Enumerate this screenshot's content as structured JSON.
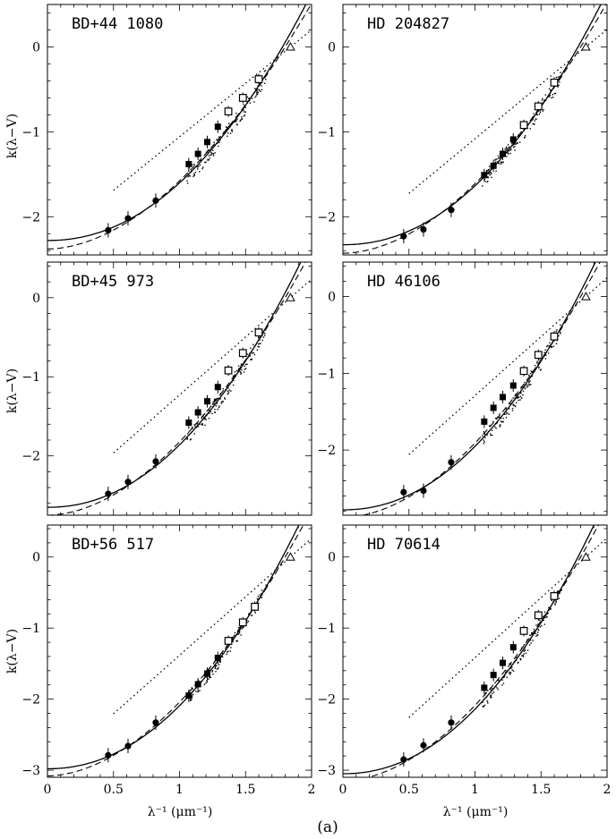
{
  "figure": {
    "caption": "(a)",
    "ylabel": "k(λ−V)",
    "xlabel": "λ⁻¹ (μm⁻¹)"
  },
  "chart_data": [
    {
      "type": "scatter",
      "title": "BD+44 1080",
      "xlim": [
        0,
        2
      ],
      "ylim": [
        -2.45,
        0.5
      ],
      "xticks": [
        0,
        0.5,
        1,
        1.5,
        2
      ],
      "yticks": [
        0,
        -1,
        -2
      ],
      "xtick_labels": [
        "0",
        "0.5",
        "1",
        "1.5",
        "2"
      ],
      "ytick_labels": [
        "0",
        "−1",
        "−2"
      ],
      "a": -2.28,
      "series": [
        {
          "name": "filled circles",
          "marker": "circle-filled",
          "points": [
            [
              0.46,
              -2.16
            ],
            [
              0.61,
              -2.02
            ],
            [
              0.82,
              -1.81
            ]
          ]
        },
        {
          "name": "filled squares",
          "marker": "square-filled",
          "points": [
            [
              1.07,
              -1.38
            ],
            [
              1.14,
              -1.26
            ],
            [
              1.21,
              -1.12
            ],
            [
              1.29,
              -0.94
            ]
          ]
        },
        {
          "name": "open squares",
          "marker": "square-open",
          "points": [
            [
              1.37,
              -0.76
            ],
            [
              1.48,
              -0.6
            ],
            [
              1.6,
              -0.38
            ]
          ]
        },
        {
          "name": "triangle",
          "marker": "triangle-open",
          "points": [
            [
              1.84,
              0.0
            ]
          ]
        }
      ]
    },
    {
      "type": "scatter",
      "title": "HD 204827",
      "xlim": [
        0,
        2
      ],
      "ylim": [
        -2.45,
        0.5
      ],
      "xticks": [
        0,
        0.5,
        1,
        1.5,
        2
      ],
      "yticks": [
        0,
        -1,
        -2
      ],
      "xtick_labels": [
        "0",
        "0.5",
        "1",
        "1.5",
        "2"
      ],
      "ytick_labels": [
        "0",
        "−1",
        "−2"
      ],
      "a": -2.33,
      "series": [
        {
          "name": "filled circles",
          "marker": "circle-filled",
          "points": [
            [
              0.46,
              -2.23
            ],
            [
              0.61,
              -2.15
            ],
            [
              0.82,
              -1.92
            ]
          ]
        },
        {
          "name": "filled squares",
          "marker": "square-filled",
          "points": [
            [
              1.07,
              -1.51
            ],
            [
              1.14,
              -1.4
            ],
            [
              1.21,
              -1.26
            ],
            [
              1.29,
              -1.09
            ]
          ]
        },
        {
          "name": "open squares",
          "marker": "square-open",
          "points": [
            [
              1.37,
              -0.92
            ],
            [
              1.48,
              -0.7
            ],
            [
              1.6,
              -0.42
            ]
          ]
        },
        {
          "name": "triangle",
          "marker": "triangle-open",
          "points": [
            [
              1.84,
              0.0
            ]
          ]
        }
      ]
    },
    {
      "type": "scatter",
      "title": "BD+45 973",
      "xlim": [
        0,
        2
      ],
      "ylim": [
        -2.75,
        0.45
      ],
      "xticks": [
        0,
        0.5,
        1,
        1.5,
        2
      ],
      "yticks": [
        0,
        -1,
        -2
      ],
      "xtick_labels": [
        "0",
        "0.5",
        "1",
        "1.5",
        "2"
      ],
      "ytick_labels": [
        "0",
        "−1",
        "−2"
      ],
      "a": -2.65,
      "series": [
        {
          "name": "filled circles",
          "marker": "circle-filled",
          "points": [
            [
              0.46,
              -2.48
            ],
            [
              0.61,
              -2.33
            ],
            [
              0.82,
              -2.07
            ]
          ]
        },
        {
          "name": "filled squares",
          "marker": "square-filled",
          "points": [
            [
              1.07,
              -1.58
            ],
            [
              1.14,
              -1.45
            ],
            [
              1.21,
              -1.31
            ],
            [
              1.29,
              -1.13
            ]
          ]
        },
        {
          "name": "open squares",
          "marker": "square-open",
          "points": [
            [
              1.37,
              -0.92
            ],
            [
              1.48,
              -0.7
            ],
            [
              1.6,
              -0.44
            ]
          ]
        },
        {
          "name": "triangle",
          "marker": "triangle-open",
          "points": [
            [
              1.84,
              0.0
            ]
          ]
        }
      ]
    },
    {
      "type": "scatter",
      "title": "HD 46106",
      "xlim": [
        0,
        2
      ],
      "ylim": [
        -2.85,
        0.45
      ],
      "xticks": [
        0,
        0.5,
        1,
        1.5,
        2
      ],
      "yticks": [
        0,
        -1,
        -2
      ],
      "xtick_labels": [
        "0",
        "0.5",
        "1",
        "1.5",
        "2"
      ],
      "ytick_labels": [
        "0",
        "−1",
        "−2"
      ],
      "a": -2.78,
      "series": [
        {
          "name": "filled circles",
          "marker": "circle-filled",
          "points": [
            [
              0.46,
              -2.55
            ],
            [
              0.61,
              -2.53
            ],
            [
              0.82,
              -2.16
            ]
          ]
        },
        {
          "name": "filled squares",
          "marker": "square-filled",
          "points": [
            [
              1.07,
              -1.63
            ],
            [
              1.14,
              -1.45
            ],
            [
              1.21,
              -1.31
            ],
            [
              1.29,
              -1.16
            ]
          ]
        },
        {
          "name": "open squares",
          "marker": "square-open",
          "points": [
            [
              1.37,
              -0.97
            ],
            [
              1.48,
              -0.76
            ],
            [
              1.6,
              -0.52
            ]
          ]
        },
        {
          "name": "triangle",
          "marker": "triangle-open",
          "points": [
            [
              1.84,
              0.0
            ]
          ]
        }
      ]
    },
    {
      "type": "scatter",
      "title": "BD+56 517",
      "xlim": [
        0,
        2
      ],
      "ylim": [
        -3.1,
        0.45
      ],
      "xticks": [
        0,
        0.5,
        1,
        1.5,
        2
      ],
      "yticks": [
        0,
        -1,
        -2,
        -3
      ],
      "xtick_labels": [
        "0",
        "0.5",
        "1",
        "1.5",
        "2"
      ],
      "ytick_labels": [
        "0",
        "−1",
        "−2",
        "−3"
      ],
      "a": -2.98,
      "series": [
        {
          "name": "filled circles",
          "marker": "circle-filled",
          "points": [
            [
              0.46,
              -2.79
            ],
            [
              0.61,
              -2.66
            ],
            [
              0.82,
              -2.33
            ]
          ]
        },
        {
          "name": "filled squares",
          "marker": "square-filled",
          "points": [
            [
              1.07,
              -1.95
            ],
            [
              1.14,
              -1.79
            ],
            [
              1.21,
              -1.64
            ],
            [
              1.29,
              -1.42
            ]
          ]
        },
        {
          "name": "open squares",
          "marker": "square-open",
          "points": [
            [
              1.37,
              -1.18
            ],
            [
              1.48,
              -0.92
            ],
            [
              1.57,
              -0.7
            ]
          ]
        },
        {
          "name": "triangle",
          "marker": "triangle-open",
          "points": [
            [
              1.84,
              0.0
            ]
          ]
        }
      ]
    },
    {
      "type": "scatter",
      "title": "HD 70614",
      "xlim": [
        0,
        2
      ],
      "ylim": [
        -3.1,
        0.45
      ],
      "xticks": [
        0,
        0.5,
        1,
        1.5,
        2
      ],
      "yticks": [
        0,
        -1,
        -2,
        -3
      ],
      "xtick_labels": [
        "0",
        "0.5",
        "1",
        "1.5",
        "2"
      ],
      "ytick_labels": [
        "0",
        "−1",
        "−2",
        "−3"
      ],
      "a": -3.05,
      "series": [
        {
          "name": "filled circles",
          "marker": "circle-filled",
          "points": [
            [
              0.46,
              -2.85
            ],
            [
              0.61,
              -2.65
            ],
            [
              0.82,
              -2.33
            ]
          ]
        },
        {
          "name": "filled squares",
          "marker": "square-filled",
          "points": [
            [
              1.07,
              -1.84
            ],
            [
              1.14,
              -1.66
            ],
            [
              1.21,
              -1.49
            ],
            [
              1.29,
              -1.27
            ]
          ]
        },
        {
          "name": "open squares",
          "marker": "square-open",
          "points": [
            [
              1.37,
              -1.04
            ],
            [
              1.48,
              -0.82
            ],
            [
              1.6,
              -0.55
            ]
          ]
        },
        {
          "name": "triangle",
          "marker": "triangle-open",
          "points": [
            [
              1.84,
              0.0
            ]
          ]
        }
      ]
    }
  ]
}
